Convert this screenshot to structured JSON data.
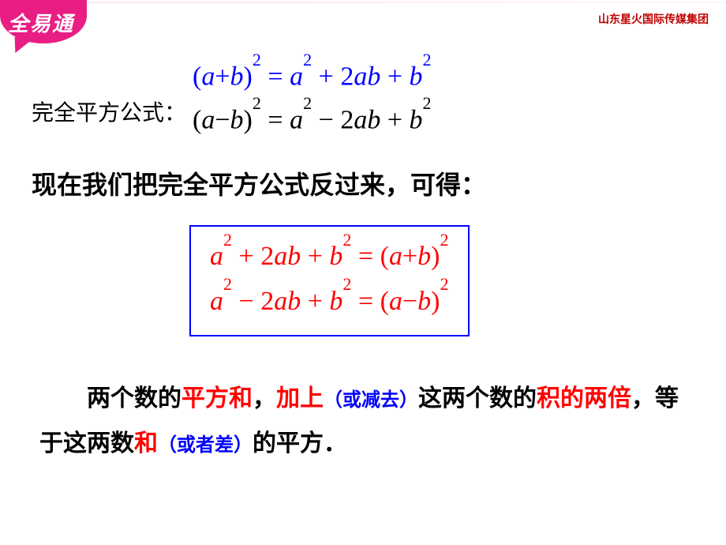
{
  "brand": {
    "logo": "全易通",
    "company": "山东星火国际传媒集团"
  },
  "colors": {
    "brand_pink": "#e91e84",
    "company_red": "#c00000",
    "formula_blue": "#0000ff",
    "formula_red": "#ff0000",
    "text_black": "#000000",
    "box_border": "#0000ff",
    "bg": "#ffffff"
  },
  "typography": {
    "cn_body_fontsize": 28,
    "stmt_fontsize": 32,
    "desc_fontsize": 30,
    "math_fontsize": 34,
    "logo_fontsize": 26,
    "company_fontsize": 14,
    "math_font": "Times New Roman",
    "cn_font": "SimSun"
  },
  "section_label": "完全平方公式：",
  "equations_top": [
    "(a+b)² = a² + 2ab + b²",
    "(a−b)² = a² − 2ab + b²"
  ],
  "statement": "现在我们把完全平方公式反过来，可得：",
  "equations_boxed": [
    "a² + 2ab + b² = (a+b)²",
    "a² − 2ab + b² = (a−b)²"
  ],
  "description": {
    "parts": [
      {
        "t": "两个数的",
        "c": "black"
      },
      {
        "t": "平方和",
        "c": "red"
      },
      {
        "t": "，",
        "c": "black"
      },
      {
        "t": "加上",
        "c": "red"
      },
      {
        "t": "（或减去）",
        "c": "blue",
        "small": true
      },
      {
        "t": "这两个数的",
        "c": "black"
      },
      {
        "t": "积的两倍",
        "c": "red"
      },
      {
        "t": "，等于这两数",
        "c": "black"
      },
      {
        "t": "和",
        "c": "red"
      },
      {
        "t": "（或者差）",
        "c": "blue",
        "small": true
      },
      {
        "t": "的平方．",
        "c": "black"
      }
    ]
  }
}
